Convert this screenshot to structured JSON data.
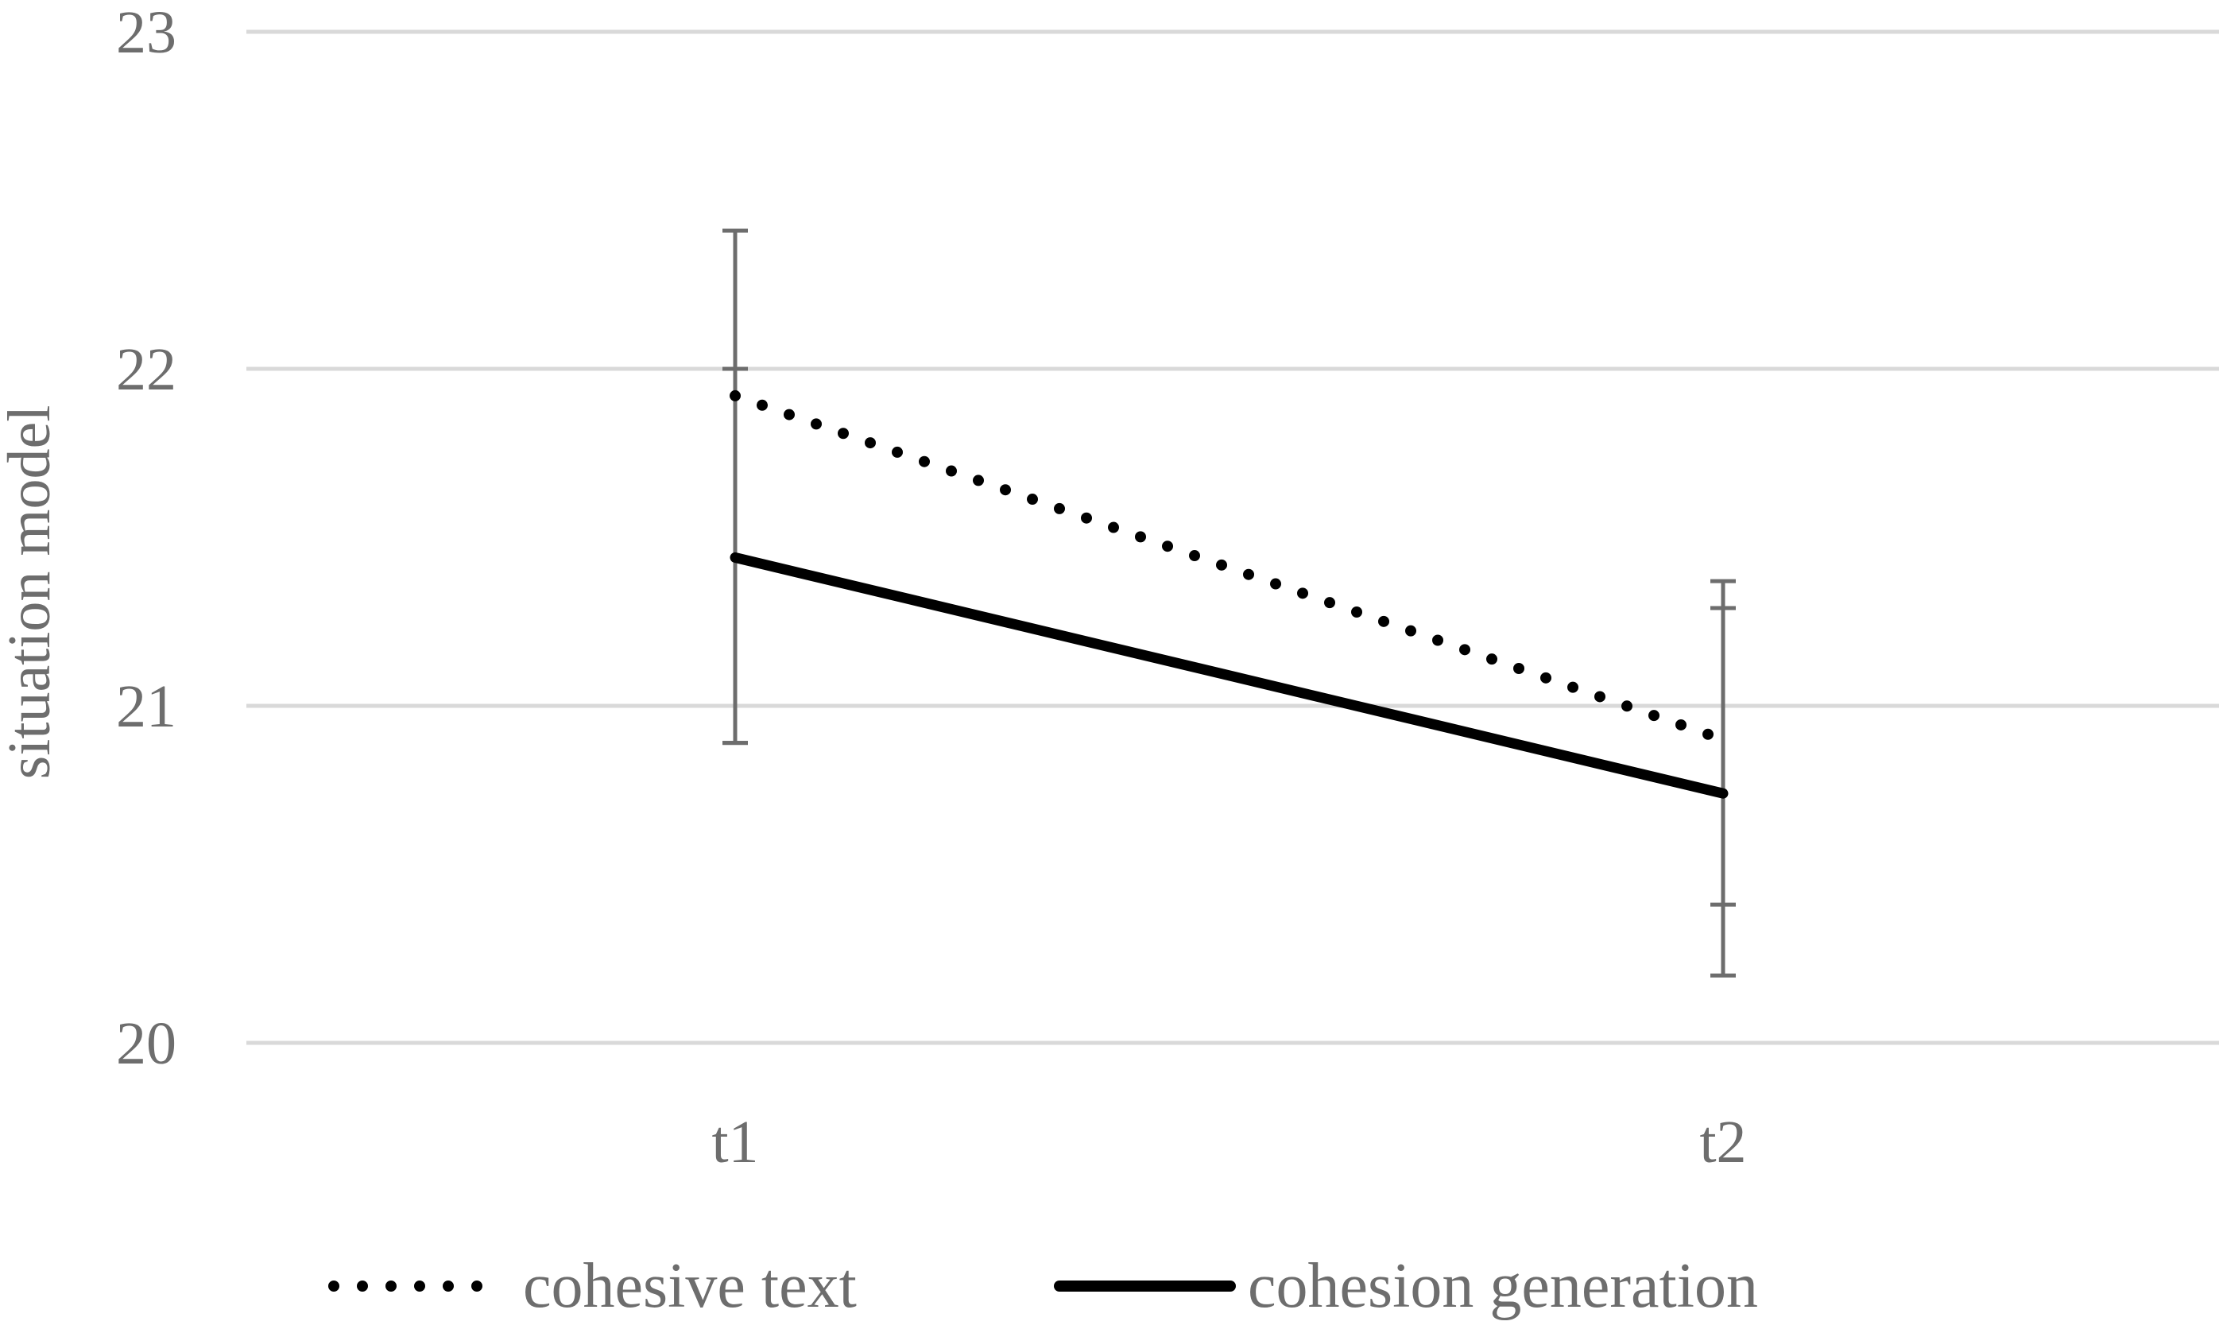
{
  "chart_data": {
    "type": "line",
    "categories": [
      "t1",
      "t2"
    ],
    "ylabel": "situation model",
    "ylim": [
      20,
      23
    ],
    "yticks": [
      20,
      21,
      22,
      23
    ],
    "grid": true,
    "legend_position": "bottom",
    "series": [
      {
        "name": "cohesive text",
        "style": "dotted",
        "color": "#000000",
        "values": [
          21.92,
          20.9
        ],
        "error_low": [
          20.89,
          20.41
        ],
        "error_high": [
          22.41,
          21.37
        ]
      },
      {
        "name": "cohesion generation",
        "style": "solid",
        "color": "#000000",
        "values": [
          21.44,
          20.74
        ],
        "error_low": [
          20.89,
          20.2
        ],
        "error_high": [
          22.0,
          21.29
        ]
      }
    ]
  }
}
